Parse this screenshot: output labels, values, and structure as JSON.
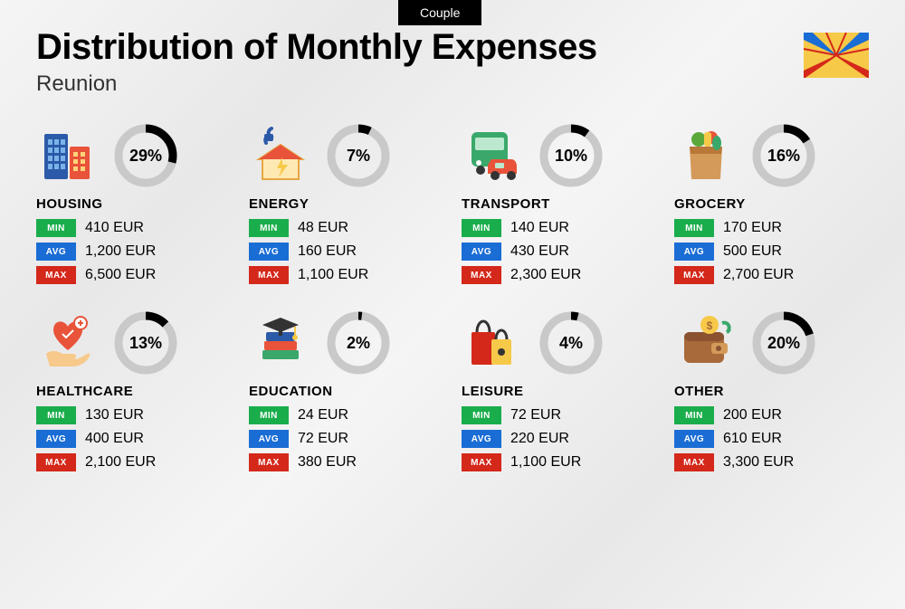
{
  "badge": "Couple",
  "title": "Distribution of Monthly Expenses",
  "subtitle": "Reunion",
  "labels": {
    "min": "MIN",
    "avg": "AVG",
    "max": "MAX"
  },
  "colors": {
    "ring_fg": "#000000",
    "ring_bg": "#c9c9c9",
    "min": "#1aad4b",
    "avg": "#1a6dd4",
    "max": "#d4281a"
  },
  "ring": {
    "radius": 30,
    "stroke_width": 9
  },
  "categories": [
    {
      "key": "housing",
      "name": "HOUSING",
      "percent": 29,
      "min": "410 EUR",
      "avg": "1,200 EUR",
      "max": "6,500 EUR",
      "icon": "buildings-icon"
    },
    {
      "key": "energy",
      "name": "ENERGY",
      "percent": 7,
      "min": "48 EUR",
      "avg": "160 EUR",
      "max": "1,100 EUR",
      "icon": "energy-house-icon"
    },
    {
      "key": "transport",
      "name": "TRANSPORT",
      "percent": 10,
      "min": "140 EUR",
      "avg": "430 EUR",
      "max": "2,300 EUR",
      "icon": "bus-car-icon"
    },
    {
      "key": "grocery",
      "name": "GROCERY",
      "percent": 16,
      "min": "170 EUR",
      "avg": "500 EUR",
      "max": "2,700 EUR",
      "icon": "grocery-bag-icon"
    },
    {
      "key": "healthcare",
      "name": "HEALTHCARE",
      "percent": 13,
      "min": "130 EUR",
      "avg": "400 EUR",
      "max": "2,100 EUR",
      "icon": "heart-hand-icon"
    },
    {
      "key": "education",
      "name": "EDUCATION",
      "percent": 2,
      "min": "24 EUR",
      "avg": "72 EUR",
      "max": "380 EUR",
      "icon": "books-cap-icon"
    },
    {
      "key": "leisure",
      "name": "LEISURE",
      "percent": 4,
      "min": "72 EUR",
      "avg": "220 EUR",
      "max": "1,100 EUR",
      "icon": "shopping-bags-icon"
    },
    {
      "key": "other",
      "name": "OTHER",
      "percent": 20,
      "min": "200 EUR",
      "avg": "610 EUR",
      "max": "3,300 EUR",
      "icon": "wallet-icon"
    }
  ]
}
